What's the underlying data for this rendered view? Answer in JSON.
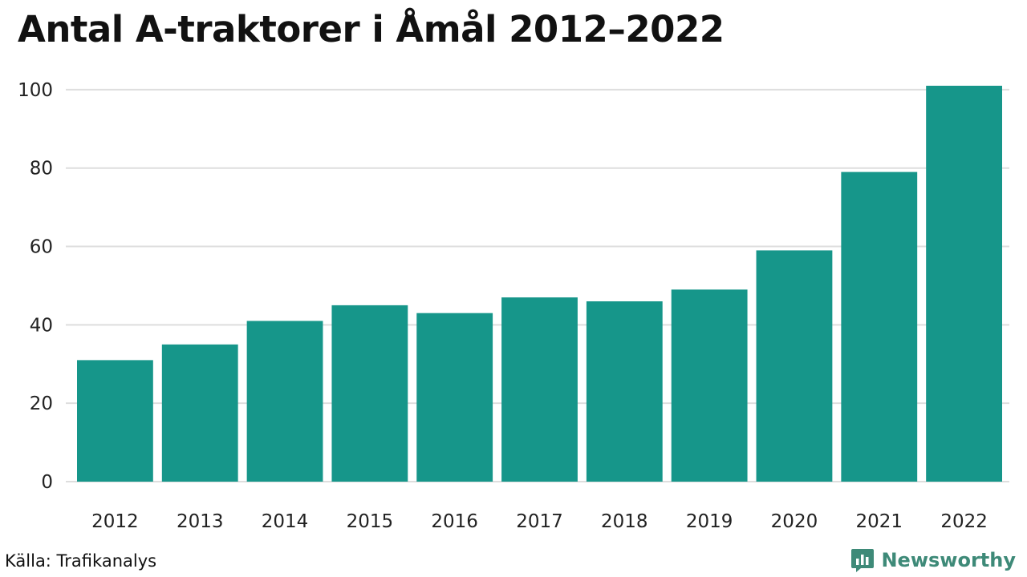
{
  "title": "Antal A-traktorer i Åmål 2012–2022",
  "source": "Källa: Trafikanalys",
  "brand": "Newsworthy",
  "colors": {
    "bar": "#16968a",
    "grid": "#dedede",
    "brand": "#3e8a78"
  },
  "chart_data": {
    "type": "bar",
    "title": "Antal A-traktorer i Åmål 2012–2022",
    "xlabel": "",
    "ylabel": "",
    "categories": [
      "2012",
      "2013",
      "2014",
      "2015",
      "2016",
      "2017",
      "2018",
      "2019",
      "2020",
      "2021",
      "2022"
    ],
    "values": [
      31,
      35,
      41,
      45,
      43,
      47,
      46,
      49,
      59,
      79,
      101
    ],
    "ylim": [
      0,
      101
    ],
    "yticks": [
      0,
      20,
      40,
      60,
      80,
      100
    ],
    "grid": "horizontal",
    "legend": "none"
  }
}
